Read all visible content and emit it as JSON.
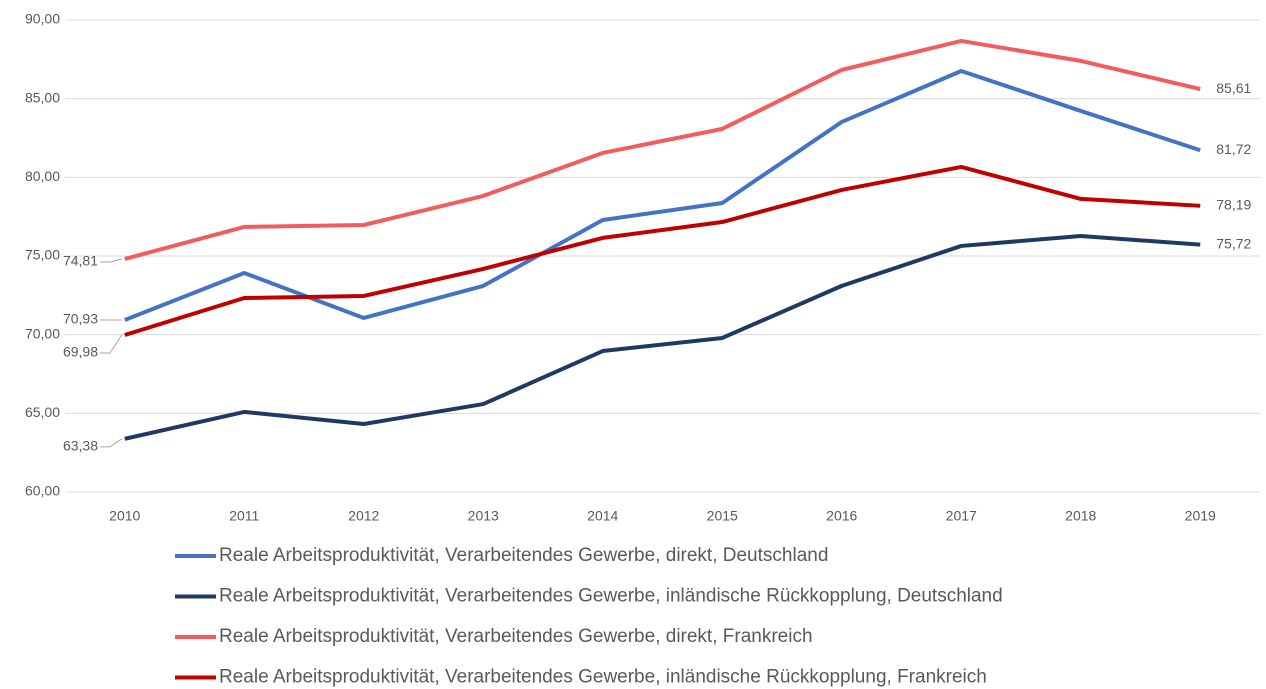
{
  "chart_data": {
    "type": "line",
    "categories": [
      "2010",
      "2011",
      "2012",
      "2013",
      "2014",
      "2015",
      "2016",
      "2017",
      "2018",
      "2019"
    ],
    "series": [
      {
        "name": "Reale Arbeitsproduktivität, Verarbeitendes Gewerbe, direkt, Deutschland",
        "color": "#4472c4",
        "values": [
          70.93,
          73.92,
          71.06,
          73.1,
          77.29,
          78.37,
          83.52,
          86.76,
          84.22,
          81.72
        ],
        "value_labels": [
          "70,93",
          null,
          null,
          null,
          null,
          null,
          null,
          null,
          null,
          "81,72"
        ]
      },
      {
        "name": "Reale Arbeitsproduktivität, Verarbeitendes Gewerbe, inländische Rückkopplung, Deutschland",
        "color": "#203864",
        "values": [
          63.38,
          65.09,
          64.32,
          65.59,
          68.96,
          69.79,
          73.1,
          75.64,
          76.27,
          75.72
        ],
        "value_labels": [
          "63,38",
          null,
          null,
          null,
          null,
          null,
          null,
          null,
          null,
          "75,72"
        ]
      },
      {
        "name": "Reale Arbeitsproduktivität, Verarbeitendes Gewerbe, direkt, Frankreich",
        "color": "#f25c5c",
        "values": [
          74.81,
          76.85,
          76.97,
          78.82,
          81.55,
          83.08,
          86.83,
          88.67,
          87.4,
          85.61
        ],
        "value_labels": [
          "74,81",
          null,
          null,
          null,
          null,
          null,
          null,
          null,
          null,
          "85,61"
        ]
      },
      {
        "name": "Reale Arbeitsproduktivität, Verarbeitendes Gewerbe, inländische Rückkopplung, Frankreich",
        "color": "#c00000",
        "values": [
          69.98,
          72.33,
          72.46,
          74.18,
          76.15,
          77.16,
          79.2,
          80.66,
          78.63,
          78.19
        ],
        "value_labels": [
          "69,98",
          null,
          null,
          null,
          null,
          null,
          null,
          null,
          null,
          "78,19"
        ]
      }
    ],
    "ylim": [
      60,
      90
    ],
    "yticks": [
      {
        "value": 60,
        "label": "60,00"
      },
      {
        "value": 65,
        "label": "65,00"
      },
      {
        "value": 70,
        "label": "70,00"
      },
      {
        "value": 75,
        "label": "75,00"
      },
      {
        "value": 80,
        "label": "80,00"
      },
      {
        "value": 85,
        "label": "85,00"
      },
      {
        "value": 90,
        "label": "90,00"
      }
    ],
    "grid": true
  }
}
